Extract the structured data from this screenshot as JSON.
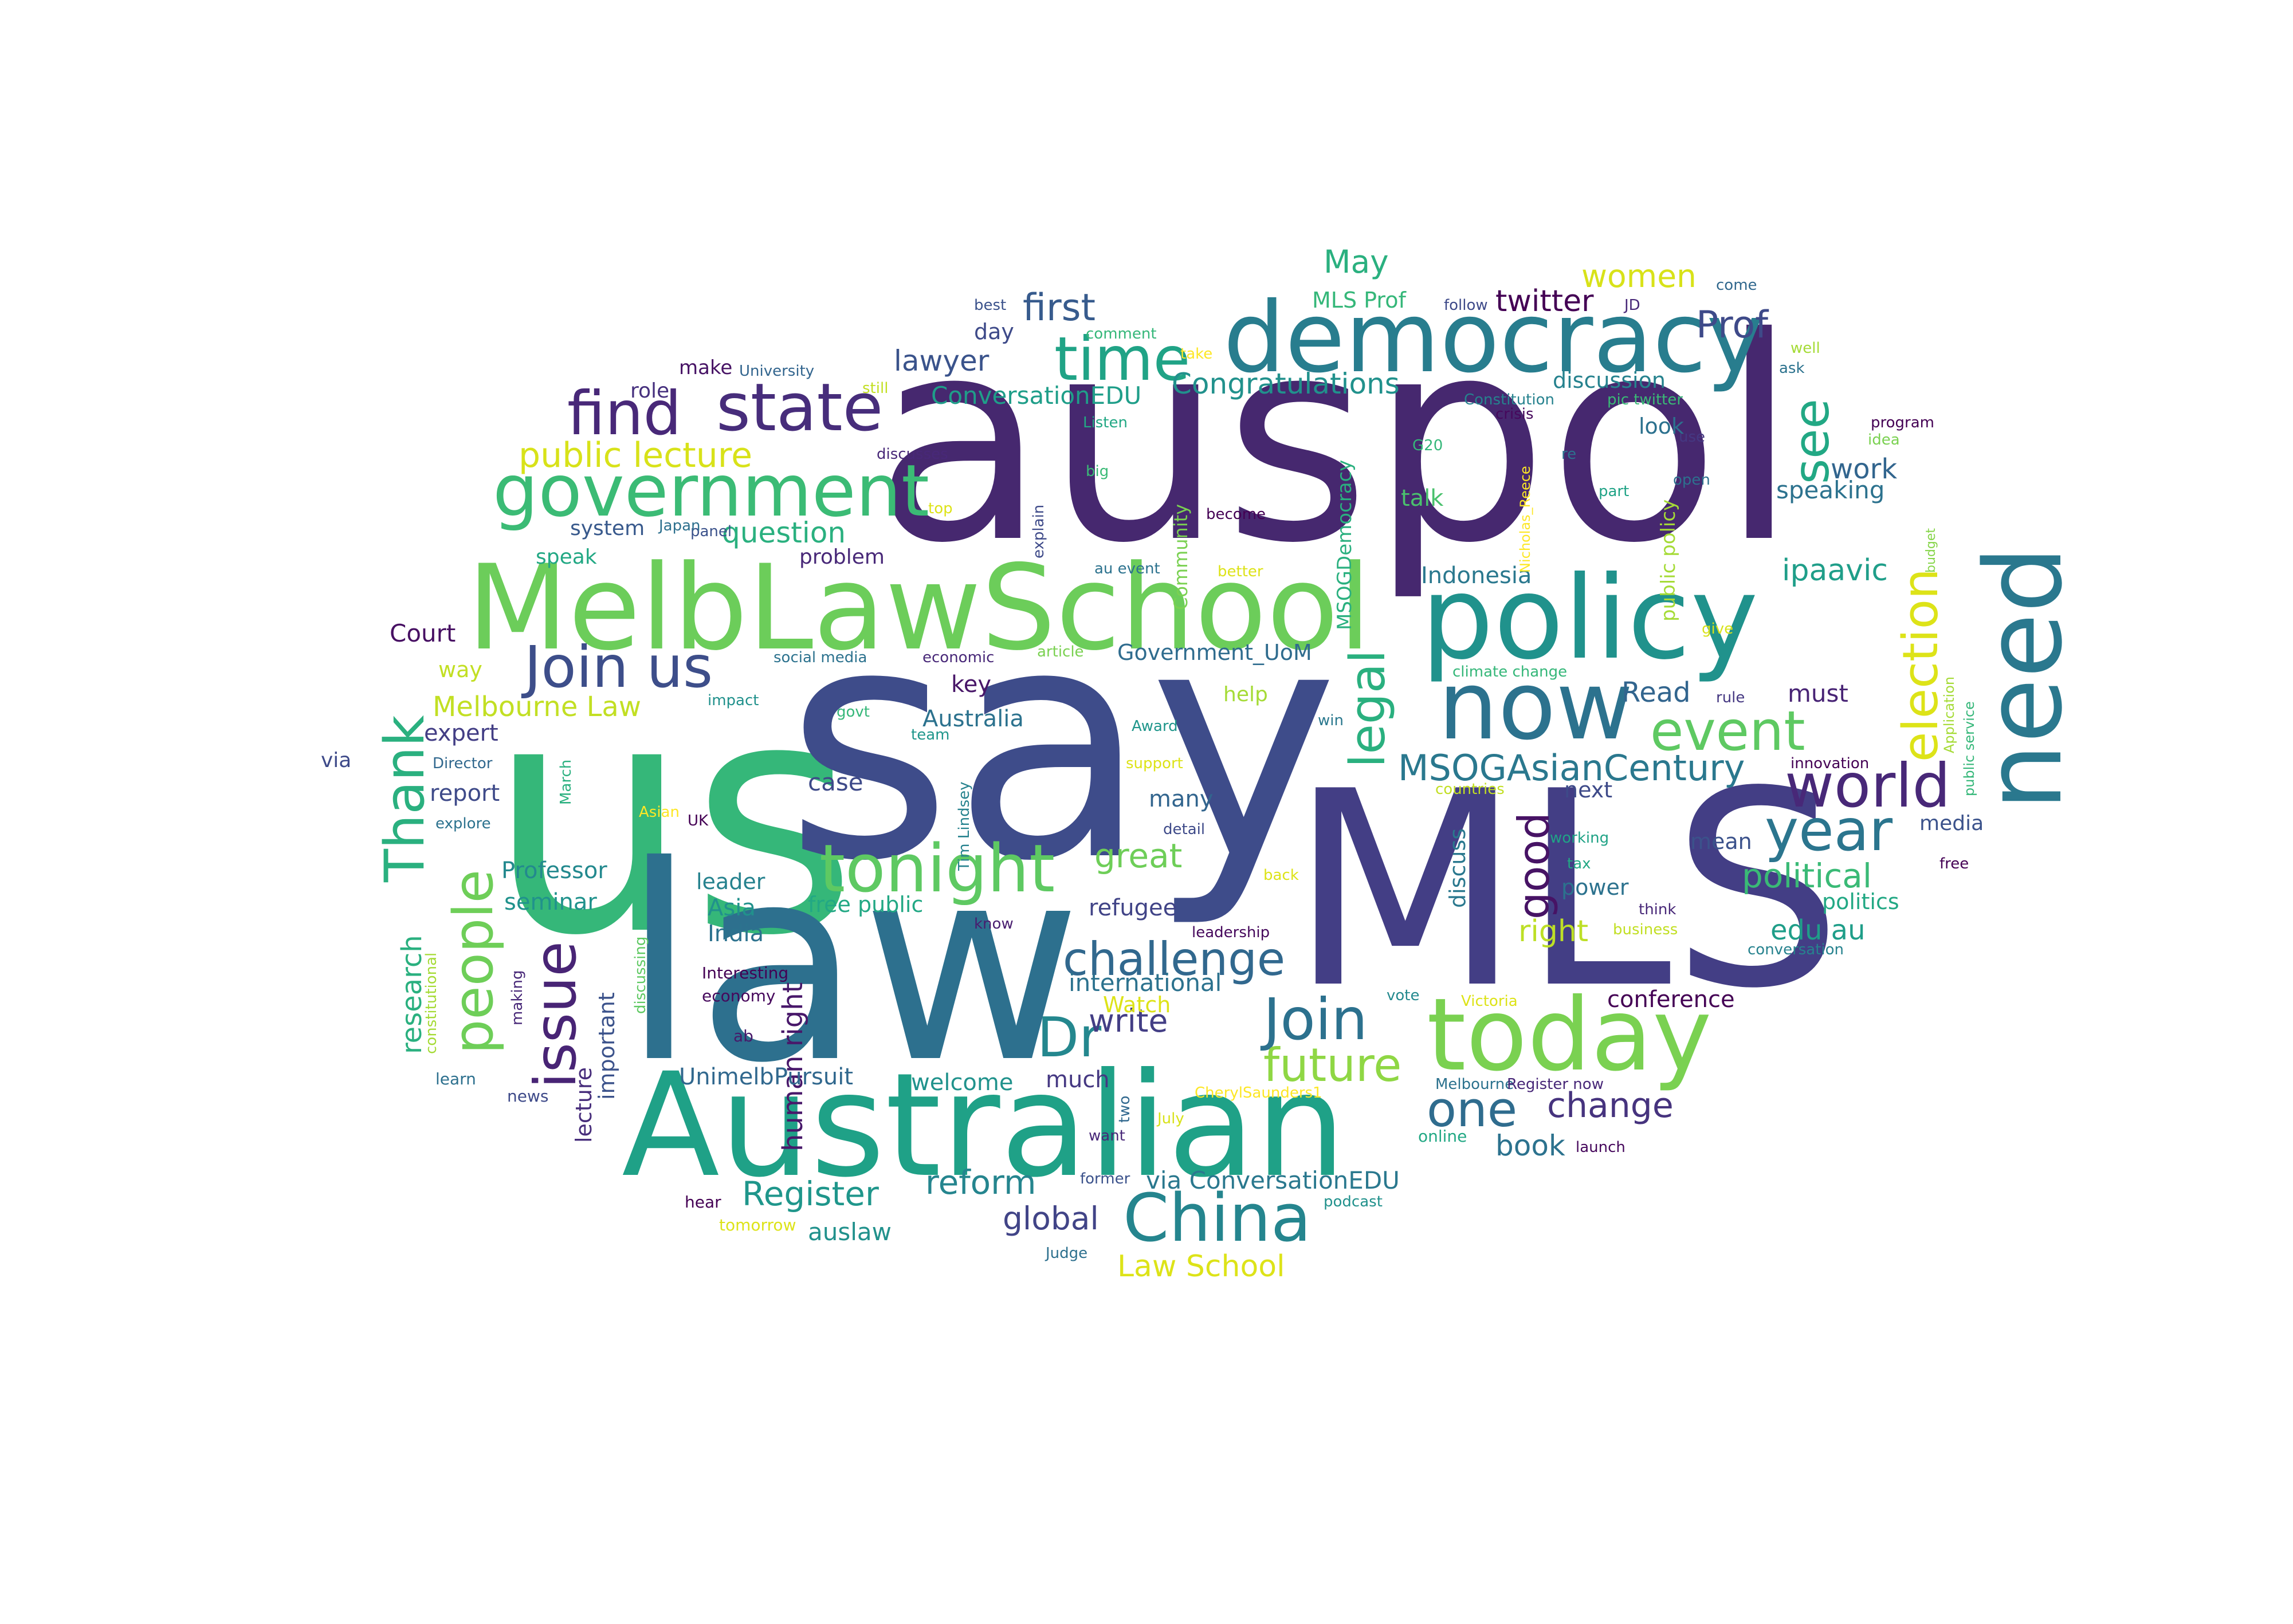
{
  "words": [
    {
      "text": "us",
      "color": "#35b779"
    },
    {
      "text": "say",
      "color": "#3e4c8a"
    },
    {
      "text": "auspol",
      "color": "#46286f"
    },
    {
      "text": "MLS",
      "color": "#433e85"
    },
    {
      "text": "law",
      "color": "#2d708e"
    },
    {
      "text": "Australian",
      "color": "#1fa187"
    },
    {
      "text": "MelbLawSchool",
      "color": "#6ccd5a"
    },
    {
      "text": "democracy",
      "color": "#287d8e"
    },
    {
      "text": "policy",
      "color": "#20928c"
    },
    {
      "text": "need",
      "color": "#2a788e"
    },
    {
      "text": "now",
      "color": "#2c728e"
    },
    {
      "text": "today",
      "color": "#7ad151"
    },
    {
      "text": "government",
      "color": "#3bbb75"
    },
    {
      "text": "Join us",
      "color": "#3d4e8a"
    },
    {
      "text": "state",
      "color": "#472d7b"
    },
    {
      "text": "find",
      "color": "#482878"
    },
    {
      "text": "time",
      "color": "#20a386"
    },
    {
      "text": "tonight",
      "color": "#5ec962"
    },
    {
      "text": "China",
      "color": "#25858e"
    },
    {
      "text": "Join",
      "color": "#2c718e"
    },
    {
      "text": "issue",
      "color": "#482475"
    },
    {
      "text": "people",
      "color": "#6ece58"
    },
    {
      "text": "Thank",
      "color": "#2ab07f"
    },
    {
      "text": "world",
      "color": "#482878"
    },
    {
      "text": "year",
      "color": "#2b758e"
    },
    {
      "text": "event",
      "color": "#5ec962"
    },
    {
      "text": "election",
      "color": "#dde318"
    },
    {
      "text": "legal",
      "color": "#2ab07f"
    },
    {
      "text": "see",
      "color": "#22a884"
    },
    {
      "text": "challenge",
      "color": "#31688e"
    },
    {
      "text": "future",
      "color": "#8fd744"
    },
    {
      "text": "Dr",
      "color": "#24878e"
    },
    {
      "text": "one",
      "color": "#2f6c8e"
    },
    {
      "text": "change",
      "color": "#46337e"
    },
    {
      "text": "MSOGAsianCentury",
      "color": "#2a788e"
    },
    {
      "text": "first",
      "color": "#375b8d"
    },
    {
      "text": "Prof",
      "color": "#3e4a89"
    },
    {
      "text": "women",
      "color": "#d8e219"
    },
    {
      "text": "twitter",
      "color": "#440154"
    },
    {
      "text": "May",
      "color": "#2ab07f"
    },
    {
      "text": "good",
      "color": "#471365"
    },
    {
      "text": "political",
      "color": "#3aba76"
    },
    {
      "text": "right",
      "color": "#bddf26"
    },
    {
      "text": "edu au",
      "color": "#1f9e89"
    },
    {
      "text": "research",
      "color": "#2ab07f"
    },
    {
      "text": "public lecture",
      "color": "#d8e219"
    },
    {
      "text": "Congratulations",
      "color": "#21918c"
    },
    {
      "text": "lawyer",
      "color": "#3a538b"
    },
    {
      "text": "ConversationEDU",
      "color": "#1f9e89"
    },
    {
      "text": "question",
      "color": "#2ab07f"
    },
    {
      "text": "great",
      "color": "#6ece58"
    },
    {
      "text": "write",
      "color": "#433e85"
    },
    {
      "text": "reform",
      "color": "#25858e"
    },
    {
      "text": "Register",
      "color": "#1f968b"
    },
    {
      "text": "global",
      "color": "#414487"
    },
    {
      "text": "Law School",
      "color": "#dde318"
    },
    {
      "text": "auslaw",
      "color": "#21918c"
    },
    {
      "text": "book",
      "color": "#2c728e"
    },
    {
      "text": "via ConversationEDU",
      "color": "#2a788e"
    },
    {
      "text": "work",
      "color": "#32658e"
    },
    {
      "text": "speaking",
      "color": "#2c728e"
    },
    {
      "text": "ipaavic",
      "color": "#1f9e89"
    },
    {
      "text": "Read",
      "color": "#32658e"
    },
    {
      "text": "must",
      "color": "#482475"
    },
    {
      "text": "human right",
      "color": "#48186a"
    },
    {
      "text": "case",
      "color": "#3e4a89"
    },
    {
      "text": "free public",
      "color": "#22a884"
    },
    {
      "text": "Melbourne Law",
      "color": "#c2df23"
    },
    {
      "text": "Australia",
      "color": "#2c728e"
    },
    {
      "text": "key",
      "color": "#481668"
    },
    {
      "text": "Government_UoM",
      "color": "#2f6c8e"
    },
    {
      "text": "Court",
      "color": "#471063"
    },
    {
      "text": "expert",
      "color": "#433e85"
    },
    {
      "text": "report",
      "color": "#3e4a89"
    },
    {
      "text": "seminar",
      "color": "#20928c"
    },
    {
      "text": "Professor",
      "color": "#23898e"
    },
    {
      "text": "Asia",
      "color": "#21918c"
    },
    {
      "text": "India",
      "color": "#2c728e"
    },
    {
      "text": "leader",
      "color": "#26828e"
    },
    {
      "text": "refugee",
      "color": "#414487"
    },
    {
      "text": "many",
      "color": "#32658e"
    },
    {
      "text": "international",
      "color": "#2c728e"
    },
    {
      "text": "Watch",
      "color": "#dde318"
    },
    {
      "text": "welcome",
      "color": "#20928c"
    },
    {
      "text": "much",
      "color": "#453882"
    },
    {
      "text": "UnimelbPursuit",
      "color": "#31688e"
    },
    {
      "text": "lecture",
      "color": "#472d7b"
    },
    {
      "text": "important",
      "color": "#3b528b"
    },
    {
      "text": "conference",
      "color": "#440154"
    },
    {
      "text": "power",
      "color": "#2c728e"
    },
    {
      "text": "politics",
      "color": "#22a884"
    },
    {
      "text": "discuss",
      "color": "#2a788e"
    },
    {
      "text": "mean",
      "color": "#3b528b"
    },
    {
      "text": "next",
      "color": "#3e4a89"
    },
    {
      "text": "MLS Prof",
      "color": "#35b779"
    },
    {
      "text": "discussion",
      "color": "#26828e"
    },
    {
      "text": "look",
      "color": "#2c718e"
    },
    {
      "text": "talk",
      "color": "#4ac16d"
    },
    {
      "text": "Indonesia",
      "color": "#2a788e"
    },
    {
      "text": "help",
      "color": "#a5db36"
    },
    {
      "text": "system",
      "color": "#38598c"
    },
    {
      "text": "speak",
      "color": "#22a884"
    },
    {
      "text": "problem",
      "color": "#482878"
    },
    {
      "text": "role",
      "color": "#46307e"
    },
    {
      "text": "make",
      "color": "#471365"
    },
    {
      "text": "day",
      "color": "#3e4a89"
    },
    {
      "text": "way",
      "color": "#c2df23"
    },
    {
      "text": "via",
      "color": "#3e4a89"
    },
    {
      "text": "media",
      "color": "#3b528b"
    },
    {
      "text": "MSOGDemocracy",
      "color": "#2ab07f"
    },
    {
      "text": "Community",
      "color": "#7ad151"
    },
    {
      "text": "public policy",
      "color": "#a5db36"
    },
    {
      "text": "Nicholas_Reece",
      "color": "#fde725"
    },
    {
      "text": "Application",
      "color": "#a5db36"
    },
    {
      "text": "public service",
      "color": "#35b779"
    },
    {
      "text": "budget",
      "color": "#86d549"
    },
    {
      "text": "constitutional",
      "color": "#a5db36"
    },
    {
      "text": "discussing",
      "color": "#5ec962"
    },
    {
      "text": "making",
      "color": "#482878"
    },
    {
      "text": "March",
      "color": "#2ab07f"
    },
    {
      "text": "Tim Lindsey",
      "color": "#26828e"
    },
    {
      "text": "explain",
      "color": "#3e4a89"
    },
    {
      "text": "two",
      "color": "#31688e"
    },
    {
      "text": "Interesting",
      "color": "#440154"
    },
    {
      "text": "economy",
      "color": "#46085c"
    },
    {
      "text": "ab",
      "color": "#48186a"
    },
    {
      "text": "news",
      "color": "#3e4a89"
    },
    {
      "text": "learn",
      "color": "#2d708e"
    },
    {
      "text": "hear",
      "color": "#440154"
    },
    {
      "text": "tomorrow",
      "color": "#dde318"
    },
    {
      "text": "Judge",
      "color": "#2d708e"
    },
    {
      "text": "former",
      "color": "#3b528b"
    },
    {
      "text": "podcast",
      "color": "#21918c"
    },
    {
      "text": "launch",
      "color": "#46085c"
    },
    {
      "text": "online",
      "color": "#22a884"
    },
    {
      "text": "want",
      "color": "#482878"
    },
    {
      "text": "July",
      "color": "#d8e219"
    },
    {
      "text": "Melbourne",
      "color": "#2c728e"
    },
    {
      "text": "Register now",
      "color": "#482878"
    },
    {
      "text": "CherylSaunders1",
      "color": "#fde725"
    },
    {
      "text": "vote",
      "color": "#23898e"
    },
    {
      "text": "Victoria",
      "color": "#dde318"
    },
    {
      "text": "conversation",
      "color": "#26828e"
    },
    {
      "text": "business",
      "color": "#c2df23"
    },
    {
      "text": "think",
      "color": "#482878"
    },
    {
      "text": "leadership",
      "color": "#46085c"
    },
    {
      "text": "know",
      "color": "#481d6f"
    },
    {
      "text": "back",
      "color": "#dde318"
    },
    {
      "text": "tax",
      "color": "#22a884"
    },
    {
      "text": "working",
      "color": "#20a386"
    },
    {
      "text": "free",
      "color": "#440154"
    },
    {
      "text": "countries",
      "color": "#c2df23"
    },
    {
      "text": "innovation",
      "color": "#440154"
    },
    {
      "text": "rule",
      "color": "#453882"
    },
    {
      "text": "support",
      "color": "#dde318"
    },
    {
      "text": "Award",
      "color": "#1f968b"
    },
    {
      "text": "detail",
      "color": "#3e4a89"
    },
    {
      "text": "UK",
      "color": "#440154"
    },
    {
      "text": "Asian",
      "color": "#fde725"
    },
    {
      "text": "explore",
      "color": "#2c728e"
    },
    {
      "text": "Director",
      "color": "#31688e"
    },
    {
      "text": "team",
      "color": "#1f968b"
    },
    {
      "text": "govt",
      "color": "#35b779"
    },
    {
      "text": "impact",
      "color": "#21918c"
    },
    {
      "text": "social media",
      "color": "#2c728e"
    },
    {
      "text": "economic",
      "color": "#482878"
    },
    {
      "text": "article",
      "color": "#7ad151"
    },
    {
      "text": "win",
      "color": "#2a788e"
    },
    {
      "text": "climate change",
      "color": "#35b779"
    },
    {
      "text": "give",
      "color": "#d8e219"
    },
    {
      "text": "au event",
      "color": "#2c728e"
    },
    {
      "text": "better",
      "color": "#dde318"
    },
    {
      "text": "become",
      "color": "#440154"
    },
    {
      "text": "Listen",
      "color": "#22a884"
    },
    {
      "text": "big",
      "color": "#3aba76"
    },
    {
      "text": "top",
      "color": "#dde318"
    },
    {
      "text": "panel",
      "color": "#3b528b"
    },
    {
      "text": "Japan",
      "color": "#2d708e"
    },
    {
      "text": "discusses",
      "color": "#482878"
    },
    {
      "text": "still",
      "color": "#c2df23"
    },
    {
      "text": "University",
      "color": "#32658e"
    },
    {
      "text": "best",
      "color": "#3b528b"
    },
    {
      "text": "comment",
      "color": "#35b779"
    },
    {
      "text": "take",
      "color": "#fde725"
    },
    {
      "text": "follow",
      "color": "#3e4a89"
    },
    {
      "text": "JD",
      "color": "#482878"
    },
    {
      "text": "come",
      "color": "#31688e"
    },
    {
      "text": "well",
      "color": "#a5db36"
    },
    {
      "text": "ask",
      "color": "#2c728e"
    },
    {
      "text": "Constitution",
      "color": "#26828e"
    },
    {
      "text": "pic twitter",
      "color": "#3aba76"
    },
    {
      "text": "crisis",
      "color": "#46085c"
    },
    {
      "text": "G20",
      "color": "#35b779"
    },
    {
      "text": "re",
      "color": "#2c728e"
    },
    {
      "text": "part",
      "color": "#20a386"
    },
    {
      "text": "use",
      "color": "#453882"
    },
    {
      "text": "open",
      "color": "#2d708e"
    },
    {
      "text": "program",
      "color": "#440154"
    },
    {
      "text": "idea",
      "color": "#7ad151"
    }
  ]
}
